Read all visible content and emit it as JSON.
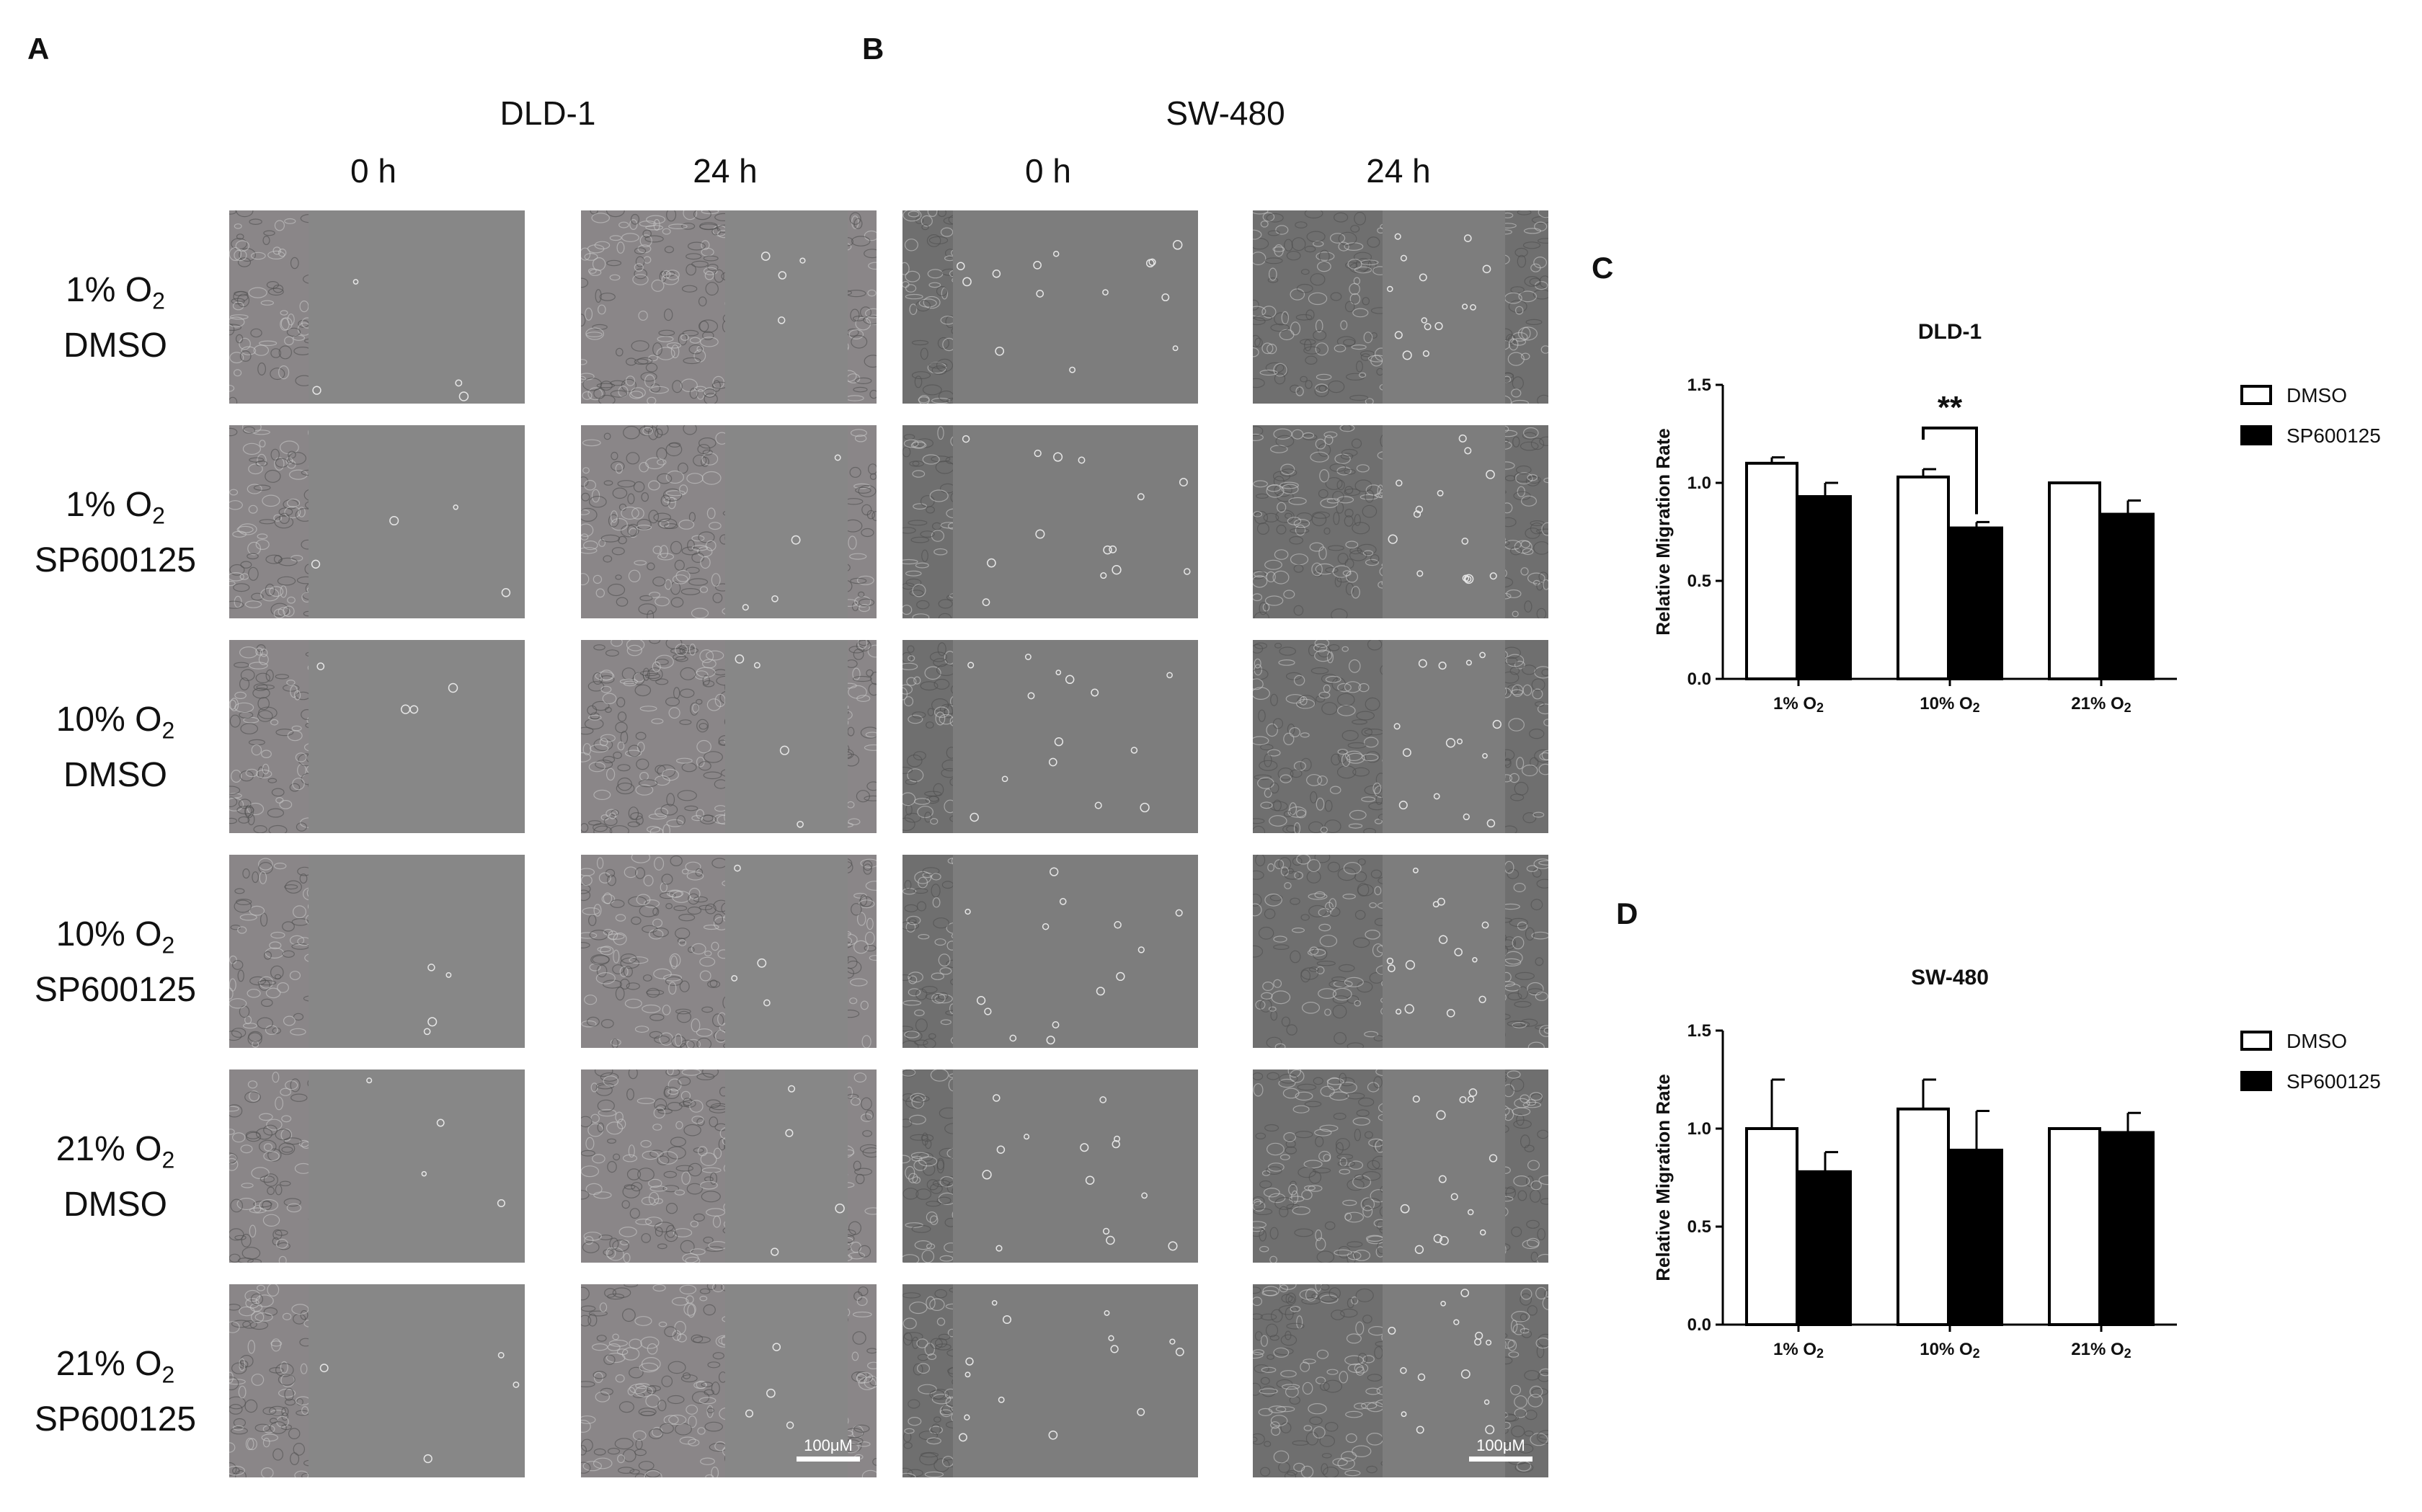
{
  "panels": {
    "A": {
      "label": "A",
      "cell_line": "DLD-1",
      "col_titles": [
        "0 h",
        "24 h"
      ]
    },
    "B": {
      "label": "B",
      "cell_line": "SW-480",
      "col_titles": [
        "0 h",
        "24 h"
      ]
    },
    "C": {
      "label": "C"
    },
    "D": {
      "label": "D"
    }
  },
  "rows": [
    {
      "oxygen": "1% O",
      "sub": "2",
      "treatment": "DMSO"
    },
    {
      "oxygen": "1% O",
      "sub": "2",
      "treatment": "SP600125"
    },
    {
      "oxygen": "10% O",
      "sub": "2",
      "treatment": "DMSO"
    },
    {
      "oxygen": "10% O",
      "sub": "2",
      "treatment": "SP600125"
    },
    {
      "oxygen": "21% O",
      "sub": "2",
      "treatment": "DMSO"
    },
    {
      "oxygen": "21% O",
      "sub": "2",
      "treatment": "SP600125"
    }
  ],
  "scale_bar": "100μM",
  "chart_data": [
    {
      "type": "bar",
      "title": "DLD-1",
      "ylabel": "Relative Migration Rate",
      "xlabel": "",
      "ylim": [
        0,
        1.5
      ],
      "yticks": [
        "0.0",
        "0.5",
        "1.0",
        "1.5"
      ],
      "categories": [
        "1% O2",
        "10% O2",
        "21% O2"
      ],
      "series": [
        {
          "name": "DMSO",
          "values": [
            1.1,
            1.03,
            1.0
          ],
          "errors": [
            0.03,
            0.04,
            0.0
          ],
          "color": "#ffffff"
        },
        {
          "name": "SP600125",
          "values": [
            0.93,
            0.77,
            0.84
          ],
          "errors": [
            0.07,
            0.03,
            0.07
          ],
          "color": "#000000"
        }
      ],
      "annotation": {
        "text": "**",
        "category": 1
      },
      "legend": "right"
    },
    {
      "type": "bar",
      "title": "SW-480",
      "ylabel": "Relative Migration Rate",
      "xlabel": "",
      "ylim": [
        0,
        1.5
      ],
      "yticks": [
        "0.0",
        "0.5",
        "1.0",
        "1.5"
      ],
      "categories": [
        "1% O2",
        "10% O2",
        "21% O2"
      ],
      "series": [
        {
          "name": "DMSO",
          "values": [
            1.0,
            1.1,
            1.0
          ],
          "errors": [
            0.25,
            0.15,
            0.0
          ],
          "color": "#ffffff"
        },
        {
          "name": "SP600125",
          "values": [
            0.78,
            0.89,
            0.98
          ],
          "errors": [
            0.1,
            0.2,
            0.1
          ],
          "color": "#000000"
        }
      ],
      "legend": "right"
    }
  ]
}
